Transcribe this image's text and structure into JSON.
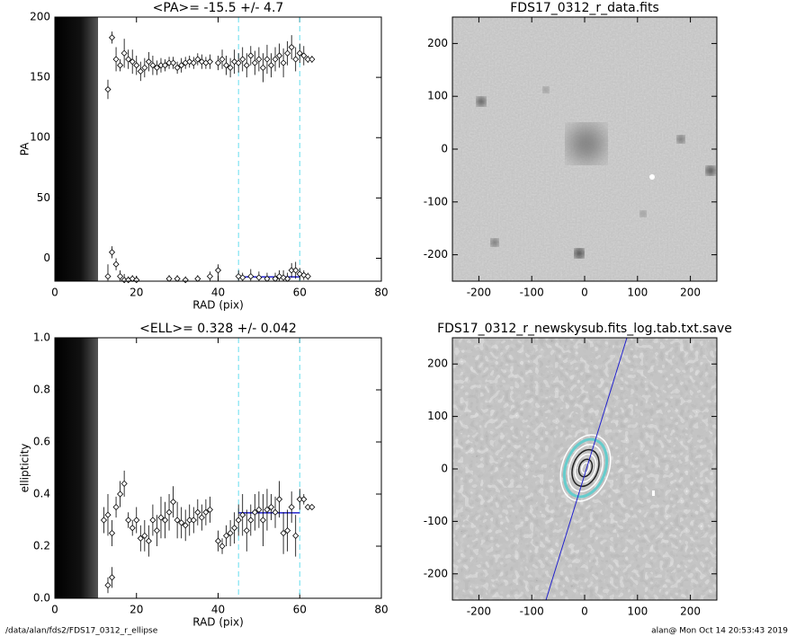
{
  "chart_data": [
    {
      "type": "errorbar",
      "title": "<PA>= -15.5 +/-   4.7",
      "x_label": "RAD (pix)",
      "y_label": "PA",
      "xlim": [
        0,
        80
      ],
      "ylim": [
        -19,
        200
      ],
      "xticks": [
        0,
        20,
        40,
        60,
        80
      ],
      "yticks": [
        0,
        50,
        100,
        150,
        200
      ],
      "vlines": [
        45,
        60
      ],
      "mean": -15.5,
      "color": "#000000",
      "fit_color": "#2222cc",
      "vline_color": "#66ddee",
      "series": [
        {
          "x": [
            13,
            14,
            15,
            16,
            17,
            18,
            19,
            20,
            21,
            22,
            23,
            24,
            25,
            26,
            27,
            28,
            29,
            30,
            31,
            32,
            33,
            34,
            35,
            36,
            37,
            38,
            40,
            41,
            42,
            43,
            44,
            45,
            46,
            47,
            48,
            49,
            50,
            51,
            52,
            53,
            54,
            55,
            56,
            57,
            58,
            59,
            60,
            61,
            62,
            63
          ],
          "values": [
            140,
            183,
            165,
            160,
            170,
            165,
            163,
            160,
            155,
            158,
            163,
            160,
            158,
            160,
            160,
            162,
            162,
            158,
            160,
            162,
            163,
            162,
            165,
            163,
            162,
            163,
            162,
            165,
            160,
            158,
            163,
            162,
            165,
            160,
            168,
            162,
            165,
            158,
            165,
            160,
            165,
            168,
            162,
            170,
            175,
            165,
            170,
            168,
            165,
            165
          ],
          "errors": [
            8,
            5,
            10,
            5,
            12,
            8,
            10,
            8,
            8,
            8,
            8,
            8,
            6,
            6,
            5,
            5,
            5,
            5,
            6,
            5,
            5,
            5,
            5,
            6,
            5,
            6,
            6,
            8,
            8,
            8,
            10,
            8,
            10,
            10,
            8,
            10,
            10,
            12,
            12,
            10,
            10,
            10,
            12,
            10,
            10,
            10,
            8,
            8,
            3,
            3
          ]
        },
        {
          "x": [
            13,
            14,
            15,
            16,
            17,
            18,
            19,
            20,
            28,
            30,
            32,
            35,
            38,
            40,
            45,
            46,
            48,
            50,
            52,
            54,
            55,
            56,
            57,
            58,
            59,
            60,
            61,
            62
          ],
          "values": [
            -15,
            5,
            -5,
            -15,
            -18,
            -18,
            -17,
            -18,
            -17,
            -17,
            -18,
            -17,
            -15,
            -10,
            -15,
            -16,
            -15,
            -16,
            -17,
            -17,
            -15,
            -16,
            -17,
            -10,
            -10,
            -13,
            -14,
            -15
          ],
          "errors": [
            10,
            5,
            5,
            5,
            5,
            3,
            3,
            3,
            3,
            3,
            3,
            3,
            4,
            5,
            5,
            4,
            6,
            5,
            5,
            5,
            5,
            6,
            5,
            6,
            7,
            5,
            4,
            3
          ]
        }
      ]
    },
    {
      "type": "image",
      "title": "FDS17_0312_r_data.fits",
      "xlim": [
        -250,
        250
      ],
      "ylim": [
        -250,
        250
      ],
      "xticks": [
        -200,
        -100,
        0,
        100,
        200
      ],
      "yticks": [
        -200,
        -100,
        0,
        100,
        200
      ]
    },
    {
      "type": "errorbar",
      "title": "<ELL>= 0.328 +/-  0.042",
      "x_label": "RAD (pix)",
      "y_label": "ellipticity",
      "xlim": [
        0,
        80
      ],
      "ylim": [
        0,
        1
      ],
      "xticks": [
        0,
        20,
        40,
        60,
        80
      ],
      "yticks": [
        {
          "value": 0,
          "label": "0.0"
        },
        0.2,
        0.4,
        0.6,
        0.8,
        {
          "value": 1,
          "label": "1.0"
        }
      ],
      "vlines": [
        45,
        60
      ],
      "mean": 0.328,
      "color": "#000000",
      "fit_color": "#2222cc",
      "vline_color": "#66ddee",
      "series": [
        {
          "x": [
            12,
            13,
            14,
            15,
            16,
            17,
            18,
            19,
            20,
            21,
            22,
            23,
            24,
            25,
            26,
            27,
            28,
            29,
            30,
            31,
            32,
            33,
            34,
            35,
            36,
            37,
            38,
            40,
            41,
            42,
            43,
            44,
            45,
            46,
            47,
            48,
            49,
            50,
            51,
            52,
            53,
            54,
            55,
            56,
            57,
            58,
            59,
            60,
            61,
            62,
            63
          ],
          "values": [
            0.3,
            0.32,
            0.25,
            0.35,
            0.4,
            0.44,
            0.3,
            0.27,
            0.3,
            0.23,
            0.24,
            0.22,
            0.3,
            0.26,
            0.31,
            0.3,
            0.33,
            0.37,
            0.3,
            0.29,
            0.28,
            0.3,
            0.3,
            0.33,
            0.31,
            0.33,
            0.34,
            0.22,
            0.2,
            0.24,
            0.25,
            0.27,
            0.3,
            0.32,
            0.26,
            0.3,
            0.33,
            0.34,
            0.3,
            0.34,
            0.35,
            0.33,
            0.38,
            0.25,
            0.26,
            0.35,
            0.24,
            0.38,
            0.38,
            0.35,
            0.35
          ],
          "errors": [
            0.05,
            0.08,
            0.05,
            0.04,
            0.05,
            0.05,
            0.03,
            0.03,
            0.05,
            0.05,
            0.06,
            0.06,
            0.06,
            0.06,
            0.08,
            0.07,
            0.07,
            0.06,
            0.07,
            0.06,
            0.06,
            0.06,
            0.05,
            0.05,
            0.05,
            0.05,
            0.05,
            0.04,
            0.03,
            0.04,
            0.05,
            0.06,
            0.06,
            0.08,
            0.08,
            0.06,
            0.07,
            0.07,
            0.1,
            0.08,
            0.05,
            0.06,
            0.07,
            0.08,
            0.08,
            0.06,
            0.08,
            0.04,
            0.02,
            0.01,
            0.01
          ]
        },
        {
          "x": [
            13,
            14
          ],
          "values": [
            0.05,
            0.08
          ],
          "errors": [
            0.03,
            0.04
          ]
        }
      ]
    },
    {
      "type": "image",
      "title": "FDS17_0312_r_newskysub.fits_log.tab.txt.save",
      "xlim": [
        -250,
        250
      ],
      "ylim": [
        -250,
        250
      ],
      "xticks": [
        -200,
        -100,
        0,
        100,
        200
      ],
      "yticks": [
        -200,
        -100,
        0,
        100,
        200
      ]
    }
  ],
  "footer": {
    "left": "/data/alan/fds2/FDS17_0312_r_ellipse",
    "right": "alan@  Mon Oct 14 20:53:43 2019"
  }
}
